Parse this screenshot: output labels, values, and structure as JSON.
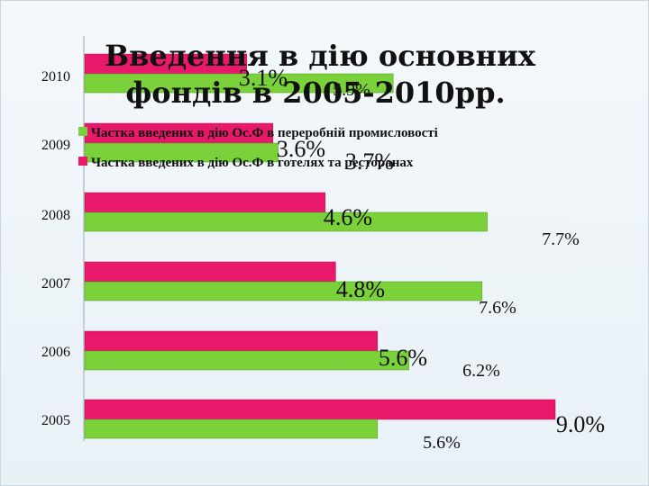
{
  "chart_data": {
    "type": "bar",
    "orientation": "horizontal",
    "title": "Введення в дію основних фондів в 2005-2010рр.",
    "title_lines": [
      "Введення в дію основних",
      "фондів в 2005-2010рр."
    ],
    "categories": [
      "2010",
      "2009",
      "2008",
      "2007",
      "2006",
      "2005"
    ],
    "series": [
      {
        "name": "Частка введених  в дію Ос.Ф в переробній промисловості",
        "color": "#7ad13a",
        "values": [
          5.9,
          3.7,
          7.7,
          7.6,
          6.2,
          5.6
        ],
        "labels": [
          "5.9%",
          "3.7%",
          "7.7%",
          "7.6%",
          "6.2%",
          "5.6%"
        ]
      },
      {
        "name": "Частка введених  в дію Ос.Ф в готелях та ресторанах",
        "color": "#e8186a",
        "values": [
          3.1,
          3.6,
          4.6,
          4.8,
          5.6,
          9.0
        ],
        "labels": [
          "3.1%",
          "3.6%",
          "4.6%",
          "4.8%",
          "5.6%",
          "9.0%"
        ]
      }
    ],
    "xlim": [
      0,
      9.5
    ],
    "grid": false,
    "legend_position": "top",
    "background": "#eef4f8"
  }
}
